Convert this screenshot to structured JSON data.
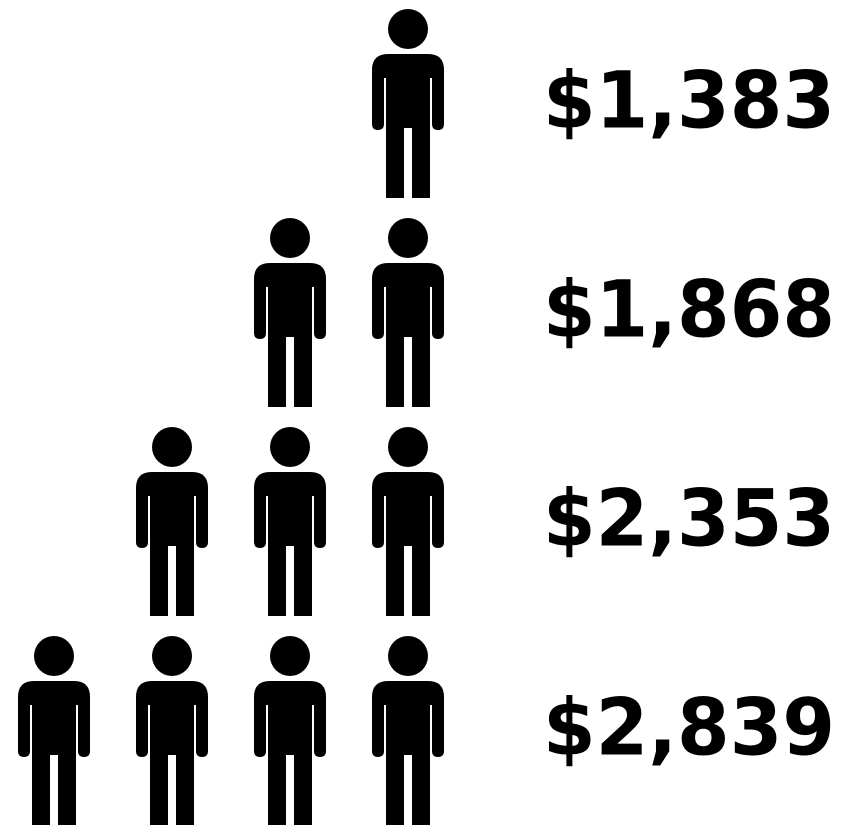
{
  "rows": [
    {
      "people": 1,
      "amount": "$1,383"
    },
    {
      "people": 2,
      "amount": "$1,868"
    },
    {
      "people": 3,
      "amount": "$2,353"
    },
    {
      "people": 4,
      "amount": "$2,839"
    }
  ]
}
